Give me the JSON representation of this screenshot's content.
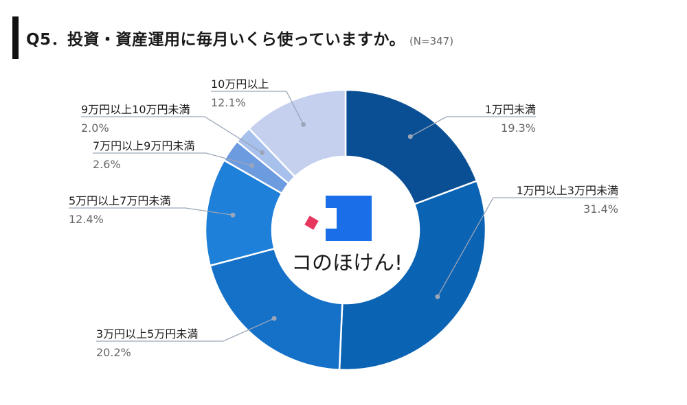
{
  "header": {
    "title": "Q5．投資・資産運用に毎月いくら使っていますか。",
    "sample": "(N=347)"
  },
  "brand": {
    "name": "コのほけん!",
    "colors": {
      "square": "#1a6fe8",
      "diamond": "#e8375f"
    }
  },
  "chart_data": {
    "type": "pie",
    "donut": true,
    "start": "top",
    "direction": "clockwise",
    "slices": [
      {
        "label": "1万円未満",
        "value": 19.3,
        "display": "19.3%",
        "color": "#0a4f94"
      },
      {
        "label": "1万円以上3万円未満",
        "value": 31.4,
        "display": "31.4%",
        "color": "#0b63b3"
      },
      {
        "label": "3万円以上5万円未満",
        "value": 20.2,
        "display": "20.2%",
        "color": "#1570c8"
      },
      {
        "label": "5万円以上7万円未満",
        "value": 12.4,
        "display": "12.4%",
        "color": "#1e80d8"
      },
      {
        "label": "7万円以上9万円未満",
        "value": 2.6,
        "display": "2.6%",
        "color": "#6d9be0"
      },
      {
        "label": "9万円以上10万円未満",
        "value": 2.0,
        "display": "2.0%",
        "color": "#a8c0ec"
      },
      {
        "label": "10万円以上",
        "value": 12.1,
        "display": "12.1%",
        "color": "#c4d0ee"
      }
    ]
  }
}
